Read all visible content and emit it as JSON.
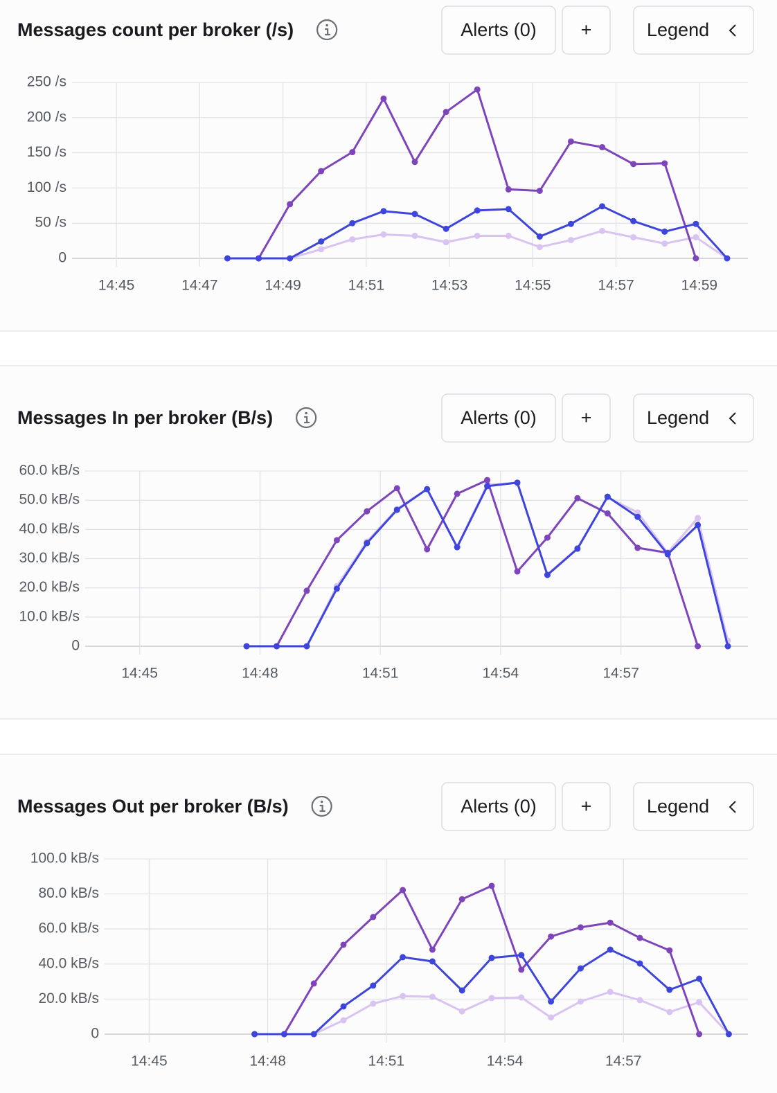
{
  "chart_data": [
    {
      "type": "line",
      "title": "Messages count per broker (/s)",
      "buttons": [
        "Alerts (0)",
        "+",
        "Legend"
      ],
      "x": [
        "14:47:40",
        "14:48:25",
        "14:49:10",
        "14:49:55",
        "14:50:40",
        "14:51:25",
        "14:52:10",
        "14:52:55",
        "14:53:40",
        "14:54:25",
        "14:55:10",
        "14:55:55",
        "14:56:40",
        "14:57:25",
        "14:58:10",
        "14:58:55",
        "14:59:40"
      ],
      "xlim": [
        "14:44:10",
        "15:00:10"
      ],
      "xticks": [
        "14:45",
        "14:47",
        "14:49",
        "14:51",
        "14:53",
        "14:55",
        "14:57",
        "14:59"
      ],
      "ylim": [
        0,
        250
      ],
      "yticks": [
        0,
        {
          "value": 50,
          "label": "50 /s"
        },
        {
          "value": 100,
          "label": "100 /s"
        },
        {
          "value": 150,
          "label": "150 /s"
        },
        {
          "value": 200,
          "label": "200 /s"
        },
        {
          "value": 250,
          "label": "250 /s"
        }
      ],
      "grid": true,
      "series": [
        {
          "color": "#d9c3f1",
          "values": [
            null,
            null,
            0,
            13,
            27,
            34,
            32,
            23,
            32,
            32,
            16,
            26,
            39,
            30,
            21,
            30,
            0
          ]
        },
        {
          "color": "#7e45ba",
          "values": [
            0,
            0,
            77,
            124,
            151,
            227,
            137,
            208,
            240,
            98,
            96,
            166,
            158,
            134,
            135,
            0,
            null
          ]
        },
        {
          "color": "#3e45da",
          "values": [
            0,
            0,
            0,
            24,
            50,
            67,
            63,
            42,
            68,
            70,
            31,
            49,
            74,
            53,
            38,
            49,
            0
          ]
        }
      ]
    },
    {
      "type": "line",
      "title": "Messages In per broker (B/s)",
      "buttons": [
        "Alerts (0)",
        "+",
        "Legend"
      ],
      "x": [
        "14:47:40",
        "14:48:25",
        "14:49:10",
        "14:49:55",
        "14:50:40",
        "14:51:25",
        "14:52:10",
        "14:52:55",
        "14:53:40",
        "14:54:25",
        "14:55:10",
        "14:55:55",
        "14:56:40",
        "14:57:25",
        "14:58:10",
        "14:58:55",
        "14:59:40"
      ],
      "xlim": [
        "14:43:53",
        "15:00:10"
      ],
      "xticks": [
        "14:45",
        "14:48",
        "14:51",
        "14:54",
        "14:57"
      ],
      "ylim": [
        0,
        60
      ],
      "yticks": [
        0,
        {
          "value": 10,
          "label": "10.0 kB/s"
        },
        {
          "value": 20,
          "label": "20.0 kB/s"
        },
        {
          "value": 30,
          "label": "30.0 kB/s"
        },
        {
          "value": 40,
          "label": "40.0 kB/s"
        },
        {
          "value": 50,
          "label": "50.0 kB/s"
        },
        {
          "value": 60,
          "label": "60.0 kB/s"
        }
      ],
      "grid": true,
      "series": [
        {
          "color": "#d9c3f1",
          "values": [
            null,
            null,
            0,
            20.6,
            35.8,
            47,
            53.8,
            34.1,
            55.3,
            56,
            24.6,
            33.6,
            51,
            45.8,
            32,
            43.9,
            1.9
          ]
        },
        {
          "color": "#7e45ba",
          "values": [
            0,
            0,
            19,
            36.3,
            46.2,
            54.1,
            33.2,
            52.2,
            56.9,
            25.6,
            37.2,
            50.7,
            45.5,
            33.7,
            32,
            0,
            null
          ]
        },
        {
          "color": "#3e45da",
          "values": [
            0,
            0,
            0,
            19.7,
            35.3,
            46.7,
            53.8,
            33.9,
            54.8,
            56,
            24.4,
            33.4,
            51.2,
            44.3,
            31.5,
            41.5,
            0
          ]
        }
      ]
    },
    {
      "type": "line",
      "title": "Messages Out per broker (B/s)",
      "buttons": [
        "Alerts (0)",
        "+",
        "Legend"
      ],
      "x": [
        "14:47:40",
        "14:48:25",
        "14:49:10",
        "14:49:55",
        "14:50:40",
        "14:51:25",
        "14:52:10",
        "14:52:55",
        "14:53:40",
        "14:54:25",
        "14:55:10",
        "14:55:55",
        "14:56:40",
        "14:57:25",
        "14:58:10",
        "14:58:55",
        "14:59:40"
      ],
      "xlim": [
        "14:44:07",
        "15:00:09"
      ],
      "xticks": [
        "14:45",
        "14:48",
        "14:51",
        "14:54",
        "14:57"
      ],
      "ylim": [
        0,
        100
      ],
      "yticks": [
        0,
        {
          "value": 20,
          "label": "20.0 kB/s"
        },
        {
          "value": 40,
          "label": "40.0 kB/s"
        },
        {
          "value": 60,
          "label": "60.0 kB/s"
        },
        {
          "value": 80,
          "label": "80.0 kB/s"
        },
        {
          "value": 100,
          "label": "100.0 kB/s"
        }
      ],
      "grid": true,
      "series": [
        {
          "color": "#d9c3f1",
          "values": [
            null,
            null,
            0,
            7.9,
            17.4,
            21.7,
            21.3,
            13,
            20.6,
            20.9,
            9.5,
            18.6,
            24.1,
            19.4,
            12.6,
            18.2,
            0
          ]
        },
        {
          "color": "#7e45ba",
          "values": [
            0,
            0,
            28.9,
            51,
            66.8,
            82.2,
            48.2,
            77,
            84.6,
            36.8,
            55.7,
            60.9,
            63.6,
            54.9,
            47.8,
            0,
            null
          ]
        },
        {
          "color": "#3e45da",
          "values": [
            0,
            0,
            0,
            15.8,
            27.7,
            43.9,
            41.5,
            24.9,
            43.5,
            45.1,
            18.6,
            37.5,
            48.2,
            40.3,
            25.3,
            31.6,
            0
          ]
        }
      ]
    }
  ]
}
